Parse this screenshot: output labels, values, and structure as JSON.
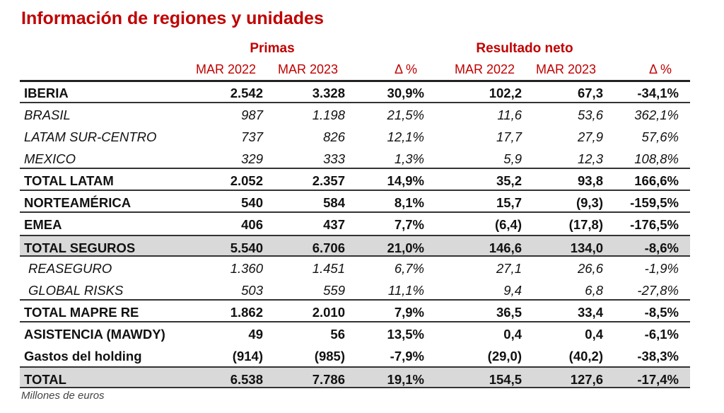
{
  "title": "Información de regiones y unidades",
  "groups": {
    "primas": "Primas",
    "resultado": "Resultado neto"
  },
  "columns": [
    "MAR 2022",
    "MAR 2023",
    "Δ %",
    "MAR 2022",
    "MAR 2023",
    "Δ %"
  ],
  "rows": [
    {
      "label": "IBERIA",
      "style": "b line",
      "values": [
        "2.542",
        "3.328",
        "30,9%",
        "102,2",
        "67,3",
        "-34,1%"
      ]
    },
    {
      "label": "BRASIL",
      "style": "i",
      "values": [
        "987",
        "1.198",
        "21,5%",
        "11,6",
        "53,6",
        "362,1%"
      ]
    },
    {
      "label": "LATAM SUR-CENTRO",
      "style": "i",
      "values": [
        "737",
        "826",
        "12,1%",
        "17,7",
        "27,9",
        "57,6%"
      ]
    },
    {
      "label": "MEXICO",
      "style": "i line",
      "values": [
        "329",
        "333",
        "1,3%",
        "5,9",
        "12,3",
        "108,8%"
      ]
    },
    {
      "label": "TOTAL LATAM",
      "style": "b line",
      "values": [
        "2.052",
        "2.357",
        "14,9%",
        "35,2",
        "93,8",
        "166,6%"
      ]
    },
    {
      "label": "NORTEAMÉRICA",
      "style": "b line",
      "values": [
        "540",
        "584",
        "8,1%",
        "15,7",
        "(9,3)",
        "-159,5%"
      ]
    },
    {
      "label": "EMEA",
      "style": "b",
      "values": [
        "406",
        "437",
        "7,7%",
        "(6,4)",
        "(17,8)",
        "-176,5%"
      ]
    },
    {
      "label": "TOTAL SEGUROS",
      "style": "b grey",
      "values": [
        "5.540",
        "6.706",
        "21,0%",
        "146,6",
        "134,0",
        "-8,6%"
      ]
    },
    {
      "label": "REASEGURO",
      "style": "i ind",
      "values": [
        "1.360",
        "1.451",
        "6,7%",
        "27,1",
        "26,6",
        "-1,9%"
      ]
    },
    {
      "label": "GLOBAL RISKS",
      "style": "i ind line",
      "values": [
        "503",
        "559",
        "11,1%",
        "9,4",
        "6,8",
        "-27,8%"
      ]
    },
    {
      "label": "TOTAL MAPRE RE",
      "style": "b line",
      "values": [
        "1.862",
        "2.010",
        "7,9%",
        "36,5",
        "33,4",
        "-8,5%"
      ]
    },
    {
      "label": "ASISTENCIA (MAWDY)",
      "style": "b",
      "values": [
        "49",
        "56",
        "13,5%",
        "0,4",
        "0,4",
        "-6,1%"
      ]
    },
    {
      "label": "Gastos del holding",
      "style": "b",
      "values": [
        "(914)",
        "(985)",
        "-7,9%",
        "(29,0)",
        "(40,2)",
        "-38,3%"
      ]
    },
    {
      "label": "TOTAL",
      "style": "b grey",
      "values": [
        "6.538",
        "7.786",
        "19,1%",
        "154,5",
        "127,6",
        "-17,4%"
      ]
    }
  ],
  "footnote": "Millones de euros"
}
